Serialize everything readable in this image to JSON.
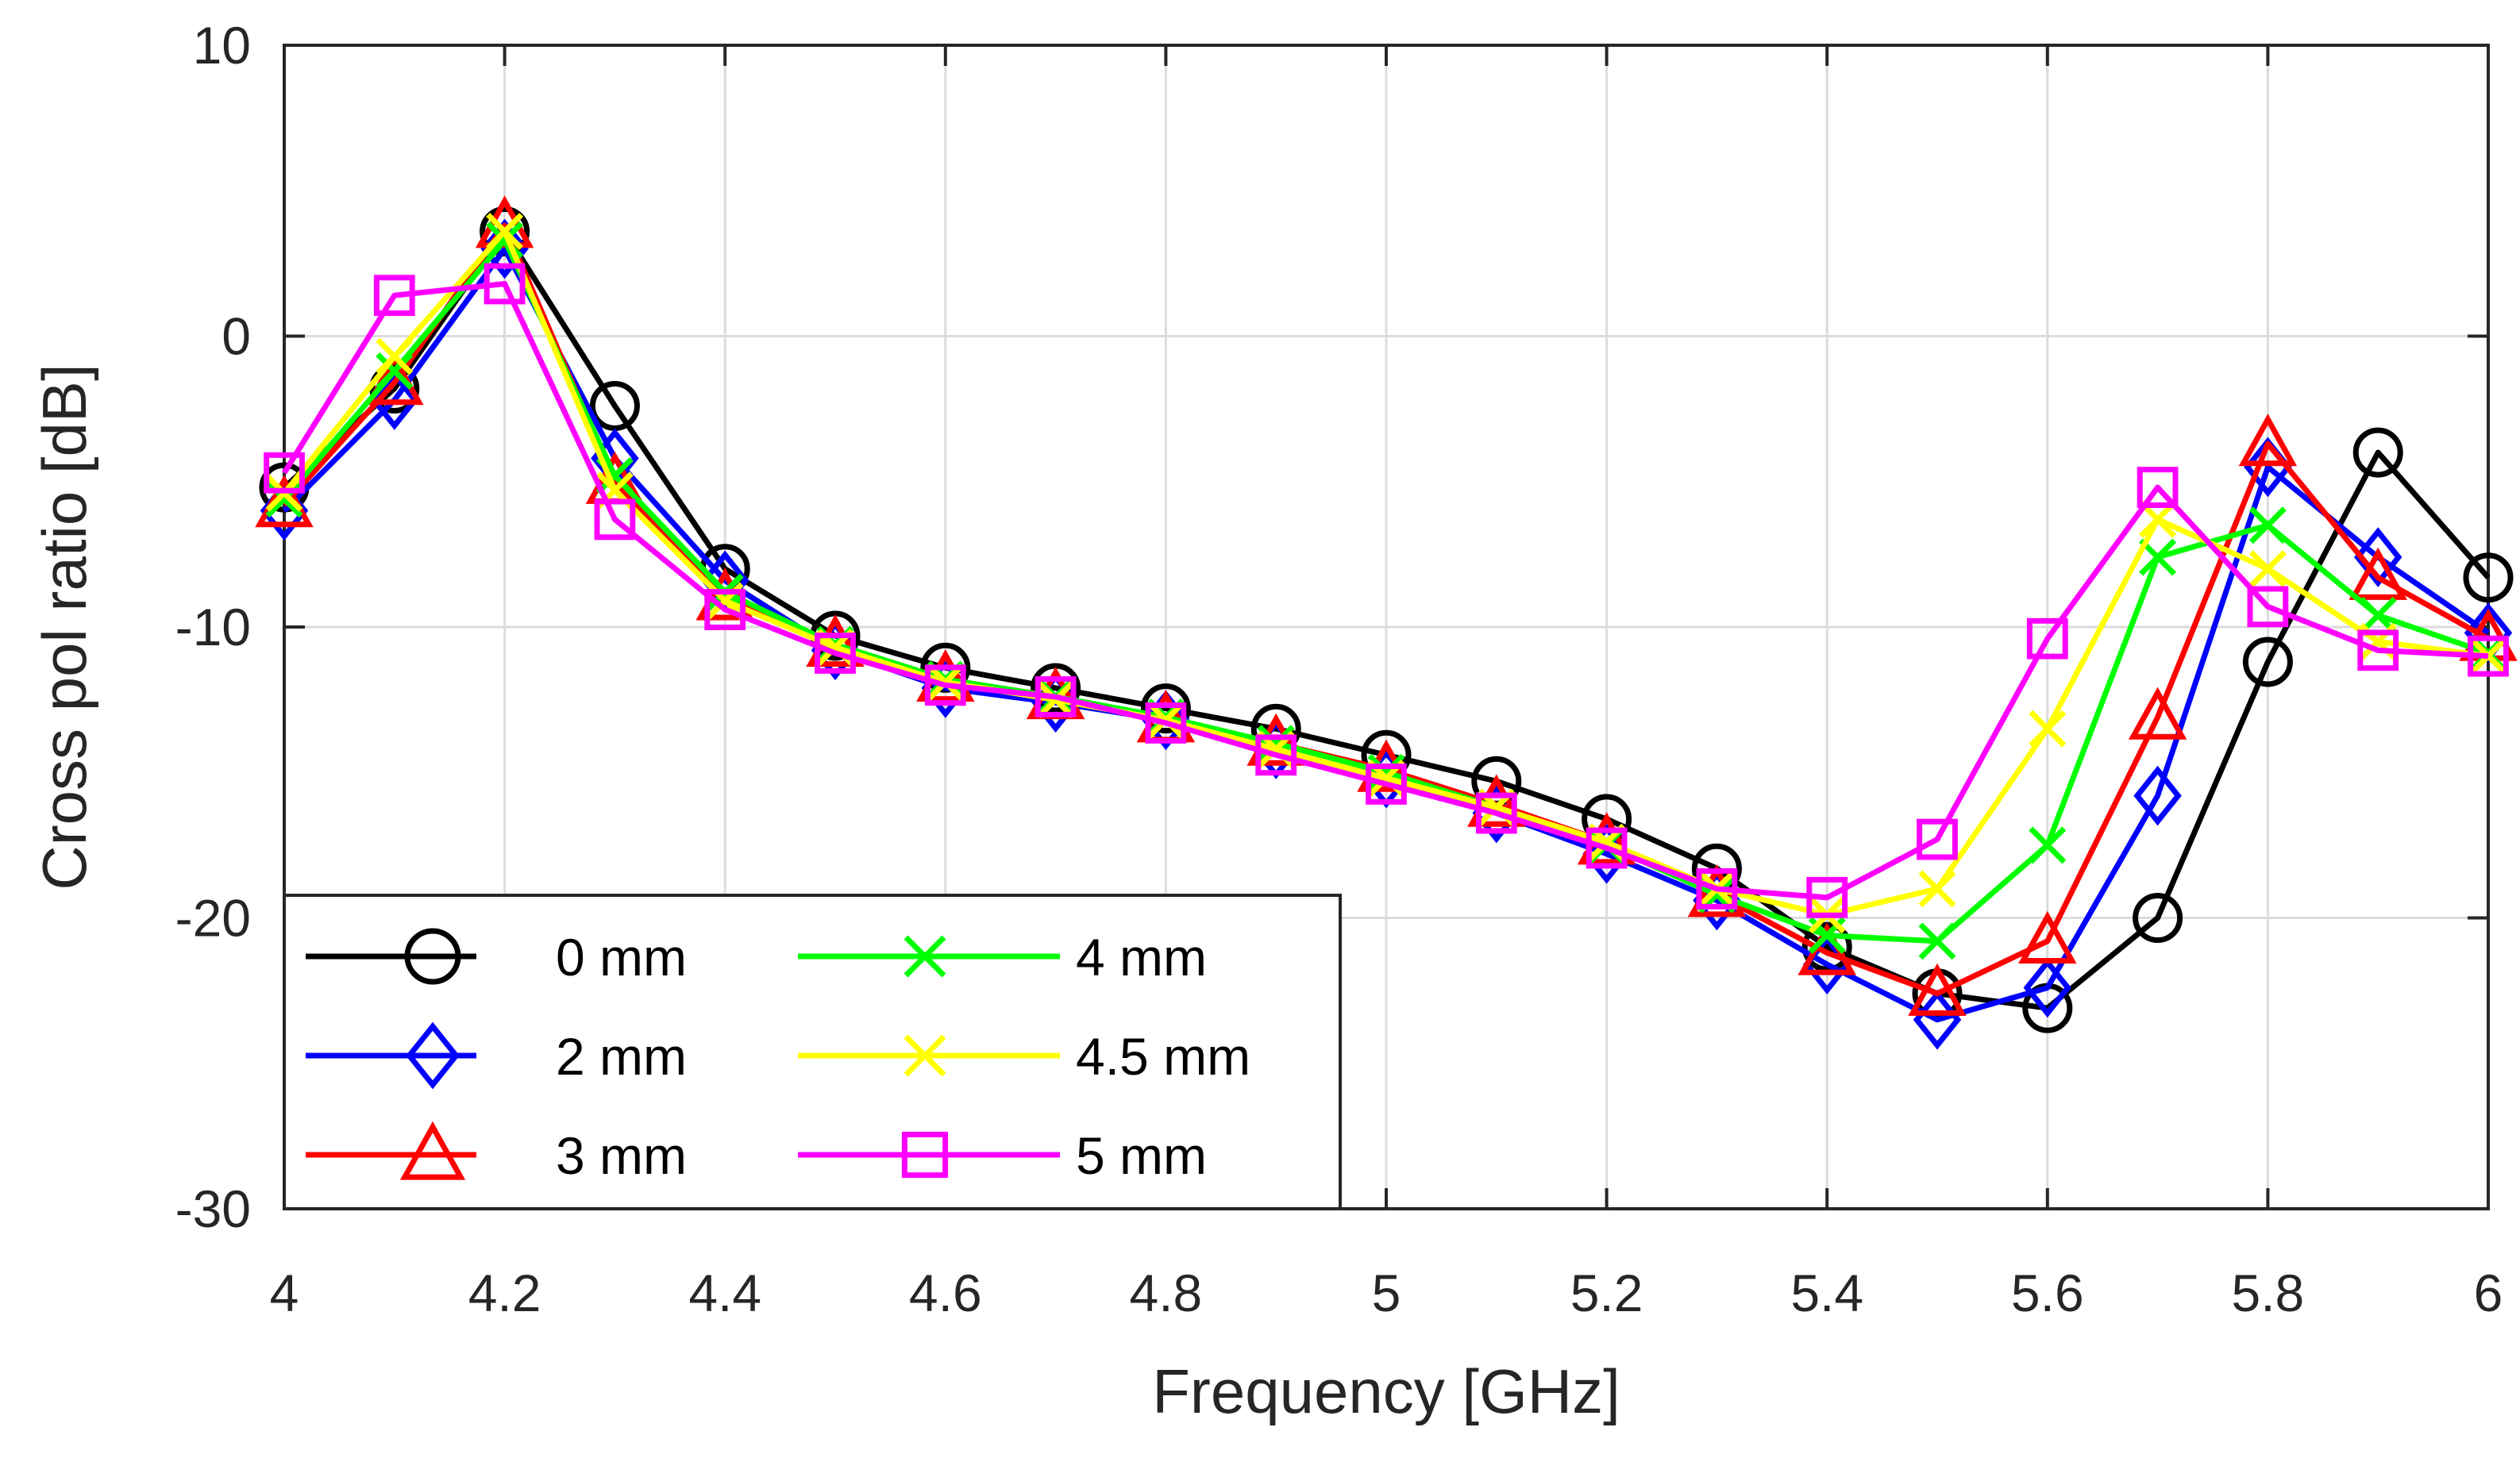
{
  "chart_data": {
    "type": "line",
    "title": "",
    "xlabel": "Frequency [GHz]",
    "ylabel": "Cross pol ratio [dB]",
    "xlim": [
      4,
      6
    ],
    "ylim": [
      -30,
      10
    ],
    "grid": true,
    "legend_position": "bottom-left",
    "x": [
      4.0,
      4.1,
      4.2,
      4.3,
      4.4,
      4.5,
      4.6,
      4.7,
      4.8,
      4.9,
      5.0,
      5.1,
      5.2,
      5.3,
      5.4,
      5.5,
      5.6,
      5.7,
      5.8,
      5.9,
      6.0
    ],
    "xticks": [
      "4",
      "4.2",
      "4.4",
      "4.6",
      "4.8",
      "5",
      "5.2",
      "5.4",
      "5.6",
      "5.8",
      "6"
    ],
    "xtick_values": [
      4,
      4.2,
      4.4,
      4.6,
      4.8,
      5,
      5.2,
      5.4,
      5.6,
      5.8,
      6
    ],
    "yticks": [
      "10",
      "0",
      "-10",
      "-20",
      "-30"
    ],
    "ytick_values": [
      10,
      0,
      -10,
      -20,
      -30
    ],
    "series": [
      {
        "name": "0 mm",
        "color": "#000000",
        "marker": "circle",
        "values": [
          -5.2,
          -1.8,
          3.6,
          -2.4,
          -8.0,
          -10.3,
          -11.4,
          -12.1,
          -12.8,
          -13.5,
          -14.4,
          -15.3,
          -16.6,
          -18.3,
          -21.0,
          -22.6,
          -23.1,
          -20.0,
          -11.2,
          -4.0,
          -8.3
        ]
      },
      {
        "name": "2 mm",
        "color": "#0000ff",
        "marker": "diamond",
        "values": [
          -6.0,
          -2.2,
          3.0,
          -4.2,
          -8.4,
          -10.8,
          -12.1,
          -12.6,
          -13.2,
          -14.2,
          -15.2,
          -16.4,
          -17.8,
          -19.4,
          -21.6,
          -23.5,
          -22.4,
          -15.8,
          -4.5,
          -7.6,
          -10.2
        ]
      },
      {
        "name": "3 mm",
        "color": "#ff0000",
        "marker": "triangle",
        "values": [
          -5.8,
          -1.6,
          3.8,
          -5.0,
          -9.0,
          -10.6,
          -11.8,
          -12.4,
          -13.2,
          -14.0,
          -14.9,
          -16.1,
          -17.4,
          -19.2,
          -21.2,
          -22.6,
          -20.8,
          -13.1,
          -3.7,
          -8.3,
          -10.4
        ]
      },
      {
        "name": "4 mm",
        "color": "#00ff00",
        "marker": "x",
        "values": [
          -5.6,
          -1.2,
          3.3,
          -4.8,
          -8.8,
          -10.6,
          -11.8,
          -12.4,
          -13.1,
          -14.0,
          -15.0,
          -16.2,
          -17.5,
          -19.2,
          -20.6,
          -20.8,
          -17.5,
          -7.6,
          -6.5,
          -9.6,
          -10.9
        ]
      },
      {
        "name": "4.5 mm",
        "color": "#ffff00",
        "marker": "x",
        "values": [
          -5.4,
          -0.7,
          3.6,
          -5.3,
          -9.1,
          -10.7,
          -11.9,
          -12.5,
          -13.2,
          -14.2,
          -15.2,
          -16.2,
          -17.4,
          -19.0,
          -19.9,
          -19.0,
          -13.5,
          -6.3,
          -8.0,
          -10.5,
          -11.0
        ]
      },
      {
        "name": "5 mm",
        "color": "#ff00ff",
        "marker": "square",
        "values": [
          -4.7,
          1.4,
          1.8,
          -6.3,
          -9.4,
          -10.9,
          -12.0,
          -12.4,
          -13.3,
          -14.4,
          -15.4,
          -16.4,
          -17.6,
          -19.0,
          -19.3,
          -17.3,
          -10.4,
          -5.2,
          -9.3,
          -10.8,
          -11.0
        ]
      }
    ]
  }
}
